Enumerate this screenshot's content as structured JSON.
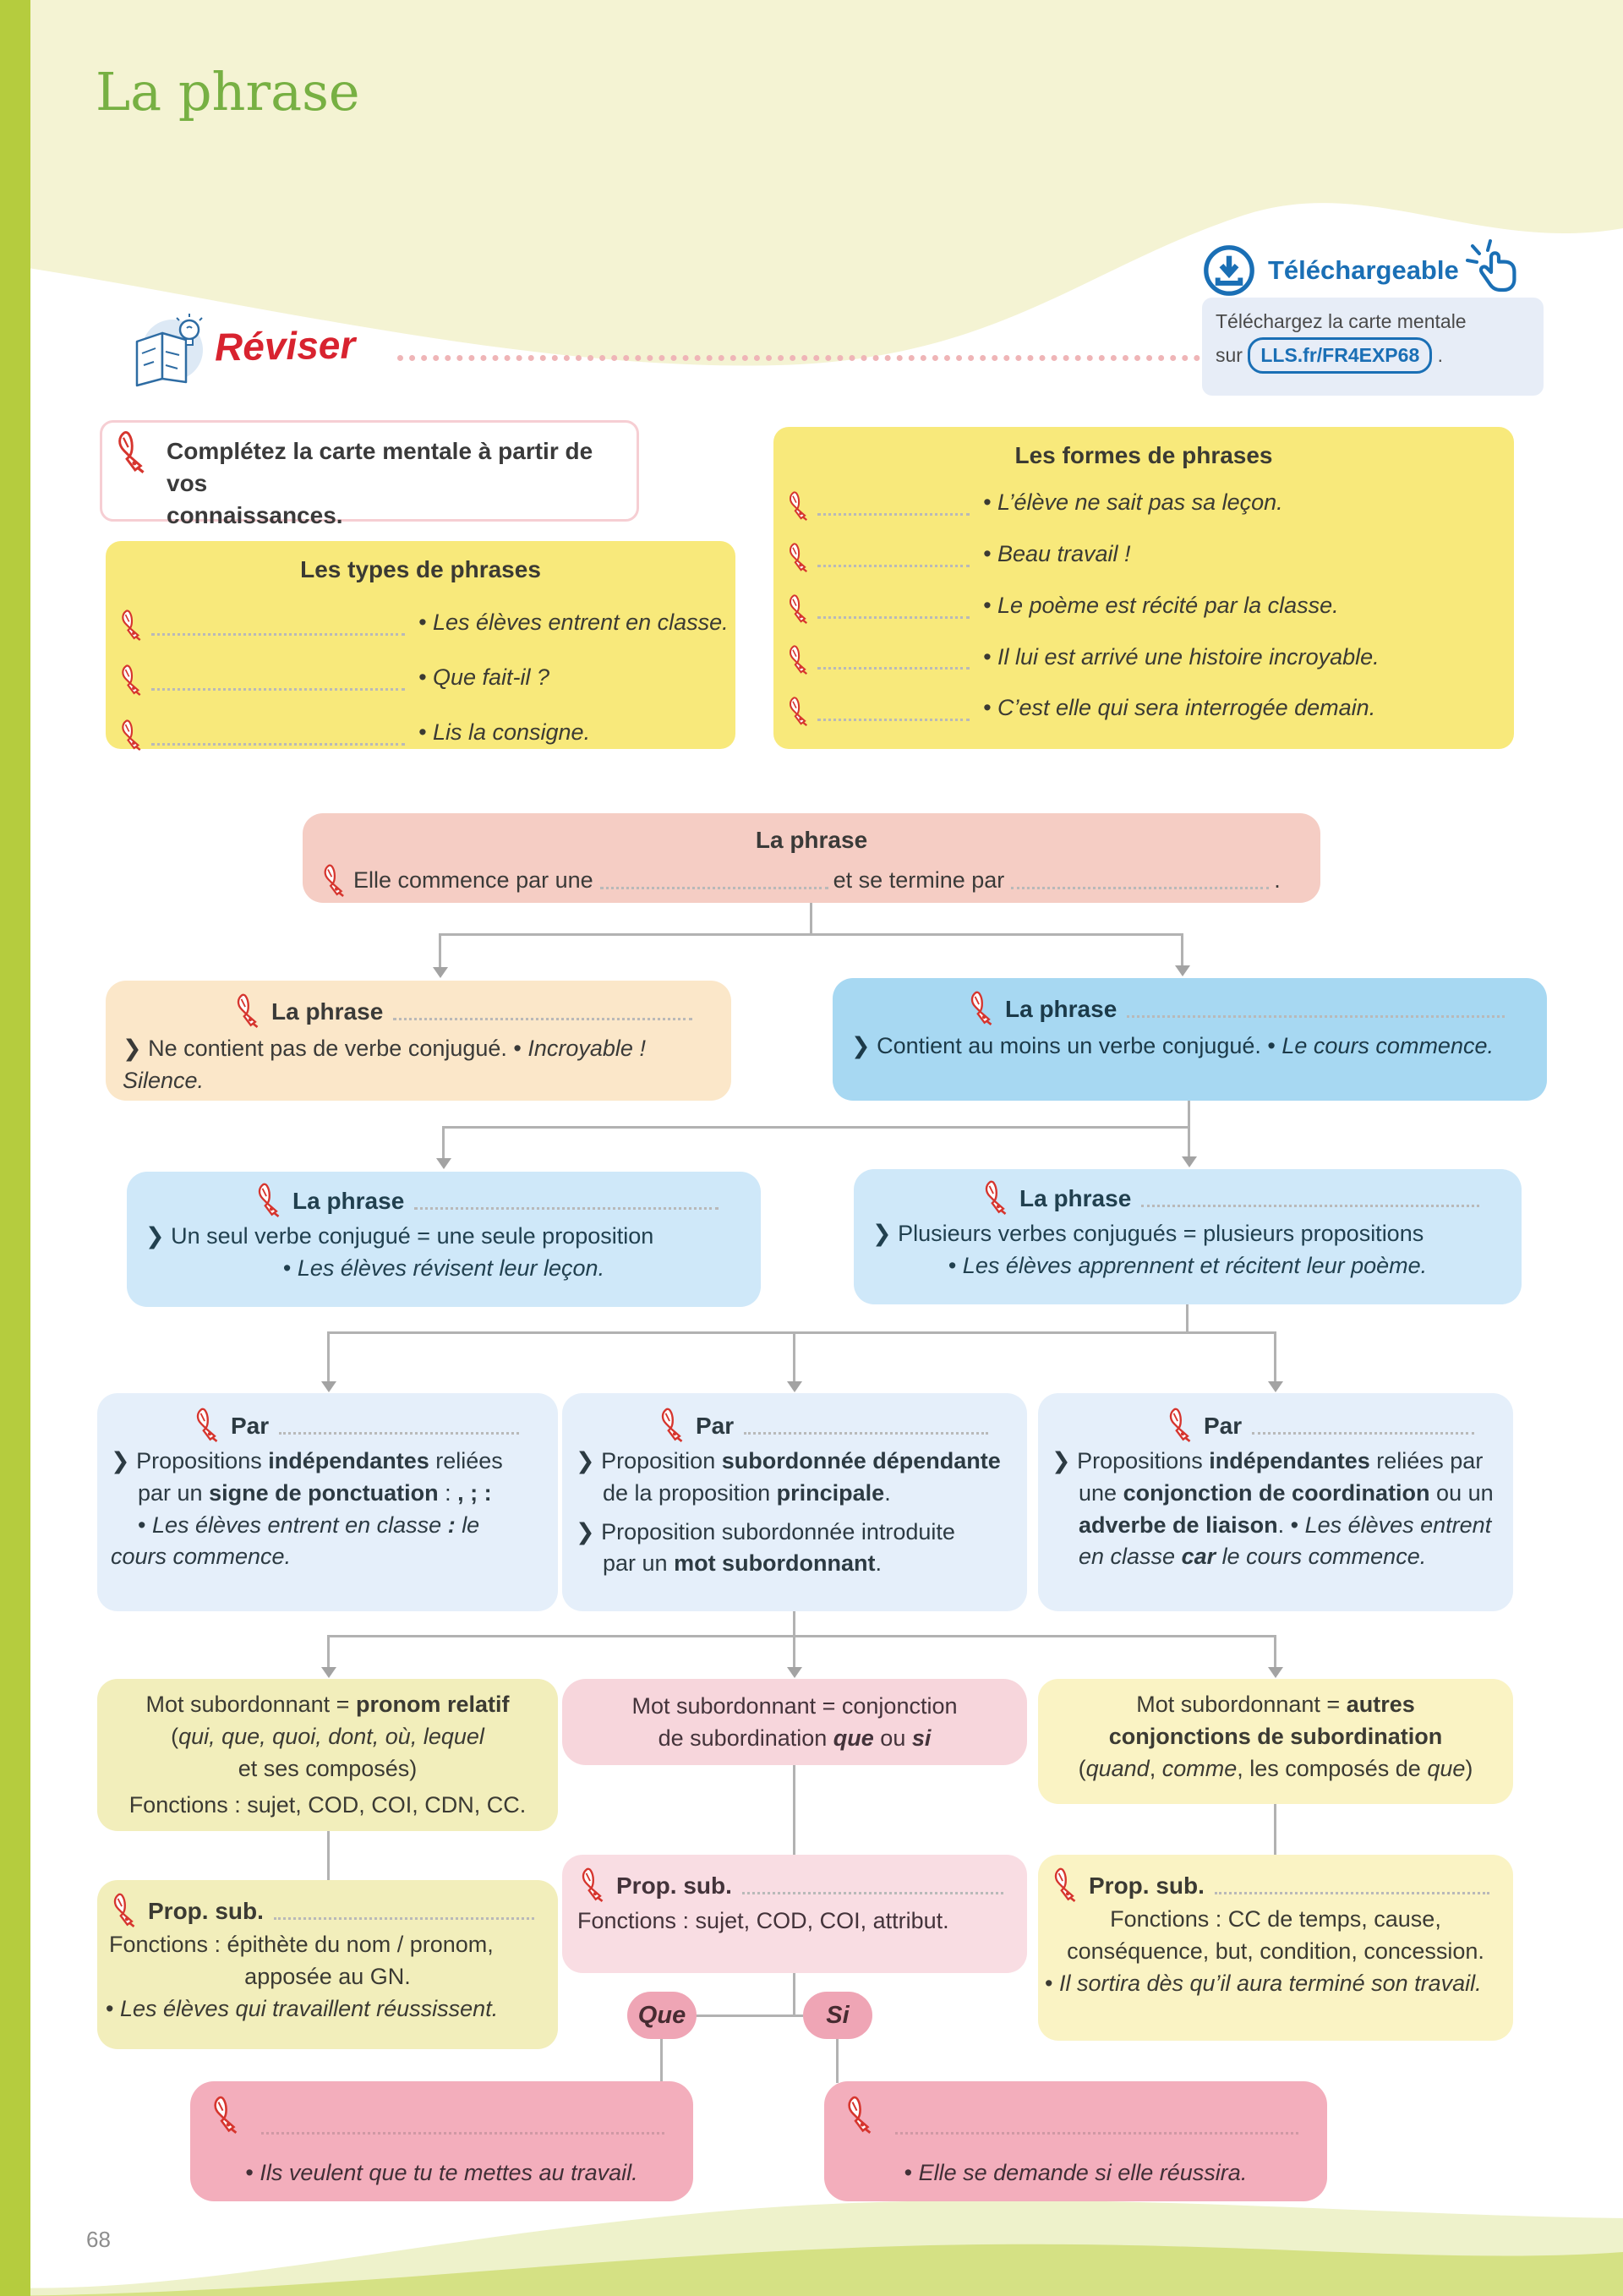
{
  "page": {
    "title": "La phrase",
    "number": "68"
  },
  "download": {
    "badge": "Téléchargeable",
    "line1": "Téléchargez la carte mentale",
    "prefix": "sur",
    "code": "LLS.fr/FR4EXP68",
    "suffix": "."
  },
  "reviser": {
    "label": "Réviser"
  },
  "consigne": {
    "line1": "Complétez la carte mentale à partir de vos",
    "line2": "connaissances."
  },
  "types": {
    "title": "Les types de phrases",
    "items": [
      "• Les élèves entrent en classe.",
      "• Que fait-il ?",
      "• Lis la consigne."
    ]
  },
  "formes": {
    "title": "Les formes de phrases",
    "items": [
      "• L’élève ne sait pas sa leçon.",
      "• Beau travail !",
      "• Le poème est récité par la classe.",
      "• Il lui est arrivé une histoire incroyable.",
      "• C’est elle qui sera interrogée demain."
    ]
  },
  "root": {
    "title": "La phrase",
    "part1": "Elle commence par une",
    "part2": "et se termine par",
    "part3": "."
  },
  "nonverbale": {
    "label": "La phrase",
    "body": [
      [
        "❯ Ne contient pas de verbe conjugué. • ",
        ""
      ],
      [
        "Incroyable ! Silence.",
        "i"
      ]
    ]
  },
  "verbale": {
    "label": "La phrase",
    "body": [
      [
        "❯ Contient au moins un verbe conjugué. • ",
        ""
      ],
      [
        "Le cours commence.",
        "i"
      ]
    ]
  },
  "simple": {
    "label": "La phrase",
    "line1": [
      [
        "❯ Un seul verbe conjugué = une seule proposition",
        ""
      ]
    ],
    "line2": [
      [
        "• ",
        ""
      ],
      [
        "Les élèves révisent leur leçon.",
        "i"
      ]
    ]
  },
  "complexe": {
    "label": "La phrase",
    "line1": [
      [
        "❯ Plusieurs verbes conjugués = plusieurs propositions",
        ""
      ]
    ],
    "line2": [
      [
        "• ",
        ""
      ],
      [
        "Les élèves apprennent et récitent leur poème.",
        "i"
      ]
    ]
  },
  "par_juxtaposition": {
    "label": "Par",
    "lines": [
      [
        [
          "❯ Propositions ",
          ""
        ],
        [
          "indépendantes",
          "b"
        ],
        [
          " reliées",
          ""
        ]
      ],
      [
        [
          "par un ",
          ""
        ],
        [
          "signe de ponctuation",
          "b"
        ],
        [
          " : ",
          ""
        ],
        [
          ", ; :",
          "b"
        ]
      ],
      [
        [
          "• ",
          ""
        ],
        [
          "Les élèves entrent en classe ",
          "i"
        ],
        [
          ": ",
          "bi"
        ],
        [
          "le",
          "i"
        ]
      ],
      [
        [
          "cours commence.",
          "i"
        ]
      ]
    ]
  },
  "par_subordination": {
    "label": "Par",
    "lines": [
      [
        [
          "❯ Proposition ",
          ""
        ],
        [
          "subordonnée dépendante",
          "b"
        ]
      ],
      [
        [
          "de la proposition ",
          ""
        ],
        [
          "principale",
          "b"
        ],
        [
          ".",
          ""
        ]
      ],
      [
        [
          "❯ Proposition subordonnée introduite",
          ""
        ]
      ],
      [
        [
          "par un ",
          ""
        ],
        [
          "mot subordonnant",
          "b"
        ],
        [
          ".",
          ""
        ]
      ]
    ]
  },
  "par_coordination": {
    "label": "Par",
    "lines": [
      [
        [
          "❯ Propositions ",
          ""
        ],
        [
          "indépendantes",
          "b"
        ],
        [
          " reliées par",
          ""
        ]
      ],
      [
        [
          "une ",
          ""
        ],
        [
          "conjonction de coordination",
          "b"
        ],
        [
          " ou un",
          ""
        ]
      ],
      [
        [
          "adverbe de liaison",
          "b"
        ],
        [
          ". • ",
          ""
        ],
        [
          "Les élèves entrent",
          "i"
        ]
      ],
      [
        [
          "en classe ",
          "i"
        ],
        [
          "car",
          "bi"
        ],
        [
          " le cours commence.",
          "i"
        ]
      ]
    ]
  },
  "mot_pronom_relatif": {
    "lines": [
      [
        [
          "Mot subordonnant = ",
          ""
        ],
        [
          "pronom relatif",
          "b"
        ]
      ],
      [
        [
          "(",
          ""
        ],
        [
          "qui, que, quoi, dont, où, lequel",
          "i"
        ]
      ],
      [
        [
          "et ses composés)",
          ""
        ]
      ],
      [
        [
          "Fonctions : sujet, COD, COI, CDN, CC.",
          ""
        ]
      ]
    ]
  },
  "mot_conjonction_que_si": {
    "lines": [
      [
        [
          "Mot subordonnant = conjonction",
          ""
        ]
      ],
      [
        [
          "de subordination ",
          ""
        ],
        [
          "que",
          "bi"
        ],
        [
          " ou ",
          ""
        ],
        [
          "si",
          "bi"
        ]
      ]
    ]
  },
  "mot_autres_conjonctions": {
    "lines": [
      [
        [
          "Mot subordonnant = ",
          ""
        ],
        [
          "autres",
          "b"
        ]
      ],
      [
        [
          "conjonctions de subordination",
          "b"
        ]
      ],
      [
        [
          "(",
          ""
        ],
        [
          "quand",
          "i"
        ],
        [
          ", ",
          ""
        ],
        [
          "comme",
          "i"
        ],
        [
          ", les composés de ",
          ""
        ],
        [
          "que",
          "i"
        ],
        [
          ")",
          ""
        ]
      ]
    ]
  },
  "prop_relative": {
    "label": "Prop. sub.",
    "lines": [
      [
        [
          "Fonctions : épithète du nom / pronom,",
          ""
        ]
      ],
      [
        [
          "apposée au GN.",
          ""
        ]
      ],
      [
        [
          "• ",
          ""
        ],
        [
          "Les élèves qui travaillent réussissent.",
          "i"
        ]
      ]
    ]
  },
  "prop_conjonctive": {
    "label": "Prop. sub.",
    "lines": [
      [
        [
          "Fonctions : sujet, COD, COI, attribut.",
          ""
        ]
      ]
    ]
  },
  "prop_circonstancielle": {
    "label": "Prop. sub.",
    "lines": [
      [
        [
          "Fonctions : CC de temps, cause,",
          ""
        ]
      ],
      [
        [
          "conséquence, but, condition, concession.",
          ""
        ]
      ],
      [
        [
          "• ",
          ""
        ],
        [
          "Il sortira dès qu’il aura terminé son travail.",
          "i"
        ]
      ]
    ]
  },
  "pills": {
    "que": "Que",
    "si": "Si"
  },
  "exemple_que": {
    "body": [
      [
        "• ",
        ""
      ],
      [
        "Ils veulent que tu te mettes au travail.",
        "i"
      ]
    ]
  },
  "exemple_si": {
    "body": [
      [
        "• ",
        ""
      ],
      [
        "Elle se demande si elle réussira.",
        "i"
      ]
    ]
  },
  "colors": {
    "sidebar_green": "#b5cc3e",
    "title_green": "#77b043",
    "pen_red": "#d6352e",
    "yellow_box": "#f8e97b",
    "salmon_box": "#f5cdc4",
    "peach_box": "#fbe7c9",
    "blue_box": "#a7d8f2",
    "light_blue_box": "#cfe8f9",
    "pale_blue_box": "#e5effa",
    "pale_yellow_box": "#f2eebb",
    "pink_box": "#f7d6dc",
    "pill_pink": "#efa5b5",
    "example_pink": "#f3aebc",
    "link_blue": "#1a6fb5",
    "band_cream": "#f4f3d3"
  }
}
